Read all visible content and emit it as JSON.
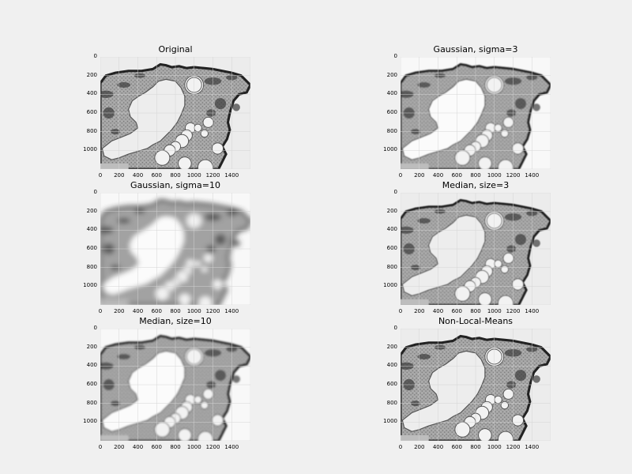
{
  "chart_data": [
    {
      "type": "image",
      "title": "Original",
      "xticks": [
        "0",
        "200",
        "400",
        "600",
        "800",
        "1000",
        "1200",
        "1400"
      ],
      "yticks": [
        "0",
        "200",
        "400",
        "600",
        "800",
        "1000"
      ],
      "xlim": [
        0,
        1600
      ],
      "ylim": [
        1200,
        0
      ],
      "grid": true,
      "blur": 0.3,
      "contrast": "normal"
    },
    {
      "type": "image",
      "title": "Gaussian, sigma=3",
      "xticks": [
        "0",
        "200",
        "400",
        "600",
        "800",
        "1000",
        "1200",
        "1400"
      ],
      "yticks": [
        "0",
        "200",
        "400",
        "600",
        "800",
        "1000"
      ],
      "xlim": [
        0,
        1600
      ],
      "ylim": [
        1200,
        0
      ],
      "grid": true,
      "blur": 0.8,
      "contrast": "high"
    },
    {
      "type": "image",
      "title": "Gaussian, sigma=10",
      "xticks": [
        "0",
        "200",
        "400",
        "600",
        "800",
        "1000",
        "1200",
        "1400"
      ],
      "yticks": [
        "0",
        "200",
        "400",
        "600",
        "800",
        "1000"
      ],
      "xlim": [
        0,
        1600
      ],
      "ylim": [
        1200,
        0
      ],
      "grid": true,
      "blur": 3.5,
      "contrast": "high"
    },
    {
      "type": "image",
      "title": "Median, size=3",
      "xticks": [
        "0",
        "200",
        "400",
        "600",
        "800",
        "1000",
        "1200",
        "1400"
      ],
      "yticks": [
        "0",
        "200",
        "400",
        "600",
        "800",
        "1000"
      ],
      "xlim": [
        0,
        1600
      ],
      "ylim": [
        1200,
        0
      ],
      "grid": true,
      "blur": 0.5,
      "contrast": "normal"
    },
    {
      "type": "image",
      "title": "Median, size=10",
      "xticks": [
        "0",
        "200",
        "400",
        "600",
        "800",
        "1000",
        "1200",
        "1400"
      ],
      "yticks": [
        "0",
        "200",
        "400",
        "600",
        "800",
        "1000"
      ],
      "xlim": [
        0,
        1600
      ],
      "ylim": [
        1200,
        0
      ],
      "grid": true,
      "blur": 1.0,
      "contrast": "high"
    },
    {
      "type": "image",
      "title": "Non-Local-Means",
      "xticks": [
        "0",
        "200",
        "400",
        "600",
        "800",
        "1000",
        "1200",
        "1400"
      ],
      "yticks": [
        "0",
        "200",
        "400",
        "600",
        "800",
        "1000"
      ],
      "xlim": [
        0,
        1600
      ],
      "ylim": [
        1200,
        0
      ],
      "grid": true,
      "blur": 0.4,
      "contrast": "normal"
    }
  ]
}
